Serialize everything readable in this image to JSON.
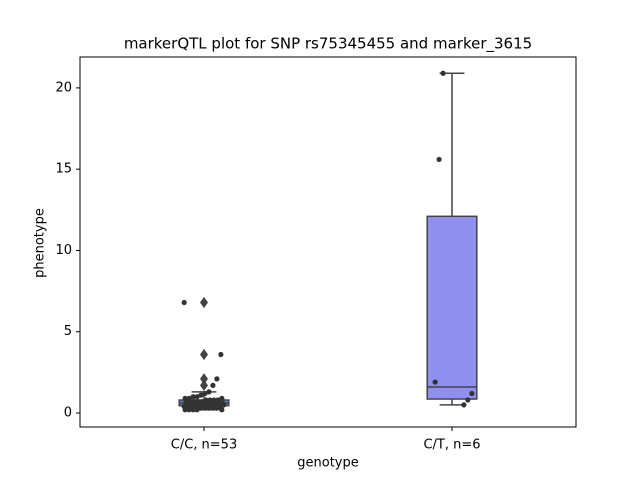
{
  "chart_data": {
    "type": "box",
    "title": "markerQTL plot for SNP rs75345455 and marker_3615",
    "xlabel": "genotype",
    "ylabel": "phenotype",
    "categories": [
      "C/C, n=53",
      "C/T, n=6"
    ],
    "boxes": [
      {
        "whislo": 0.2,
        "q1": 0.45,
        "med": 0.6,
        "q3": 0.8,
        "whishi": 1.3,
        "fliers": [
          6.8,
          3.6,
          2.1,
          1.7
        ],
        "color": "#5f7fbf"
      },
      {
        "whislo": 0.5,
        "q1": 0.86,
        "med": 1.6,
        "q3": 12.1,
        "whishi": 20.9,
        "fliers": [],
        "color": "#8f8fef"
      }
    ],
    "points": [
      [
        6.8,
        3.6,
        2.1,
        1.7,
        1.3,
        1.2,
        1.1,
        1.0,
        1.0,
        0.9,
        0.9,
        0.9,
        0.8,
        0.8,
        0.8,
        0.8,
        0.7,
        0.7,
        0.7,
        0.7,
        0.7,
        0.6,
        0.6,
        0.6,
        0.6,
        0.6,
        0.6,
        0.6,
        0.5,
        0.5,
        0.5,
        0.5,
        0.5,
        0.5,
        0.5,
        0.4,
        0.4,
        0.4,
        0.4,
        0.4,
        0.4,
        0.4,
        0.3,
        0.3,
        0.3,
        0.3,
        0.3,
        0.3,
        0.2,
        0.2,
        0.2,
        0.2,
        0.2
      ],
      [
        20.9,
        15.6,
        1.9,
        1.2,
        0.8,
        0.5
      ]
    ],
    "point_color": "#333333",
    "ylim": [
      -0.86,
      21.9
    ],
    "yticks": [
      0,
      5,
      10,
      15,
      20
    ]
  }
}
